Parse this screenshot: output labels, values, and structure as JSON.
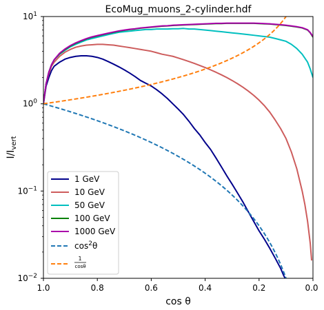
{
  "chart_data": {
    "type": "line",
    "title": "EcoMug_muons_2-cylinder.hdf",
    "xlabel": "cos θ",
    "ylabel": "I/I_vert",
    "xlim": [
      1.0,
      0.0
    ],
    "ylim": [
      0.01,
      10
    ],
    "yscale": "log",
    "x_ticks": [
      "1.0",
      "0.8",
      "0.6",
      "0.4",
      "0.2",
      "0.0"
    ],
    "y_ticks": [
      "10^-2",
      "10^-1",
      "10^0",
      "10^1"
    ],
    "legend_position": "lower-left",
    "grid": false,
    "series": [
      {
        "name": "1 GeV",
        "color": "#00008b",
        "style": "solid",
        "x": [
          1.0,
          0.99,
          0.98,
          0.97,
          0.96,
          0.94,
          0.92,
          0.9,
          0.88,
          0.86,
          0.84,
          0.82,
          0.8,
          0.78,
          0.76,
          0.74,
          0.72,
          0.7,
          0.68,
          0.66,
          0.64,
          0.62,
          0.6,
          0.58,
          0.56,
          0.54,
          0.52,
          0.5,
          0.48,
          0.46,
          0.44,
          0.42,
          0.4,
          0.38,
          0.36,
          0.34,
          0.32,
          0.3,
          0.28,
          0.26,
          0.24,
          0.22,
          0.2,
          0.18,
          0.16,
          0.14,
          0.12,
          0.11,
          0.1,
          0.095,
          0.09
        ],
        "y": [
          1.0,
          1.6,
          2.0,
          2.4,
          2.7,
          3.0,
          3.25,
          3.4,
          3.5,
          3.55,
          3.55,
          3.5,
          3.4,
          3.25,
          3.05,
          2.85,
          2.65,
          2.45,
          2.25,
          2.05,
          1.85,
          1.72,
          1.6,
          1.45,
          1.3,
          1.15,
          1.0,
          0.87,
          0.75,
          0.63,
          0.52,
          0.44,
          0.36,
          0.3,
          0.24,
          0.19,
          0.15,
          0.12,
          0.095,
          0.075,
          0.058,
          0.045,
          0.035,
          0.028,
          0.022,
          0.017,
          0.013,
          0.011,
          0.0095,
          0.0088,
          0.0082
        ]
      },
      {
        "name": "10 GeV",
        "color": "#cd5c5c",
        "style": "solid",
        "x": [
          1.0,
          0.99,
          0.98,
          0.97,
          0.96,
          0.94,
          0.92,
          0.9,
          0.88,
          0.86,
          0.84,
          0.82,
          0.8,
          0.78,
          0.76,
          0.74,
          0.72,
          0.7,
          0.68,
          0.66,
          0.64,
          0.62,
          0.6,
          0.58,
          0.56,
          0.54,
          0.52,
          0.5,
          0.48,
          0.46,
          0.44,
          0.42,
          0.4,
          0.38,
          0.36,
          0.34,
          0.32,
          0.3,
          0.28,
          0.26,
          0.24,
          0.22,
          0.2,
          0.18,
          0.16,
          0.14,
          0.12,
          0.1,
          0.08,
          0.06,
          0.04,
          0.03,
          0.02,
          0.01,
          0.005
        ],
        "y": [
          1.0,
          1.7,
          2.2,
          2.7,
          3.0,
          3.5,
          3.9,
          4.2,
          4.45,
          4.6,
          4.7,
          4.75,
          4.8,
          4.8,
          4.75,
          4.7,
          4.6,
          4.5,
          4.4,
          4.3,
          4.2,
          4.1,
          4.0,
          3.85,
          3.7,
          3.6,
          3.5,
          3.35,
          3.2,
          3.05,
          2.9,
          2.75,
          2.6,
          2.45,
          2.3,
          2.15,
          2.0,
          1.85,
          1.7,
          1.55,
          1.4,
          1.25,
          1.1,
          0.95,
          0.8,
          0.65,
          0.52,
          0.4,
          0.28,
          0.18,
          0.1,
          0.07,
          0.045,
          0.025,
          0.016
        ]
      },
      {
        "name": "50 GeV",
        "color": "#00bfbf",
        "style": "solid",
        "x": [
          1.0,
          0.99,
          0.98,
          0.97,
          0.96,
          0.94,
          0.92,
          0.9,
          0.88,
          0.86,
          0.84,
          0.82,
          0.8,
          0.78,
          0.76,
          0.74,
          0.72,
          0.7,
          0.68,
          0.66,
          0.64,
          0.62,
          0.6,
          0.58,
          0.56,
          0.54,
          0.52,
          0.5,
          0.48,
          0.46,
          0.44,
          0.42,
          0.4,
          0.38,
          0.36,
          0.34,
          0.32,
          0.3,
          0.28,
          0.26,
          0.24,
          0.22,
          0.2,
          0.18,
          0.16,
          0.14,
          0.12,
          0.1,
          0.08,
          0.06,
          0.04,
          0.02,
          0.01,
          0.0
        ],
        "y": [
          1.0,
          1.7,
          2.3,
          2.8,
          3.2,
          3.7,
          4.1,
          4.5,
          4.8,
          5.1,
          5.4,
          5.6,
          5.8,
          6.0,
          6.2,
          6.4,
          6.6,
          6.7,
          6.8,
          6.9,
          7.0,
          7.1,
          7.1,
          7.2,
          7.2,
          7.2,
          7.25,
          7.25,
          7.3,
          7.2,
          7.2,
          7.1,
          7.0,
          6.9,
          6.8,
          6.7,
          6.6,
          6.5,
          6.4,
          6.3,
          6.2,
          6.1,
          6.0,
          5.9,
          5.8,
          5.6,
          5.4,
          5.2,
          4.8,
          4.3,
          3.7,
          3.0,
          2.5,
          2.0
        ]
      },
      {
        "name": "100 GeV",
        "color": "#008000",
        "style": "solid",
        "x": [
          1.0,
          0.99,
          0.98,
          0.97,
          0.96,
          0.94,
          0.92,
          0.9,
          0.88,
          0.86,
          0.84,
          0.82,
          0.8,
          0.78,
          0.76,
          0.74,
          0.72,
          0.7,
          0.68,
          0.66,
          0.64,
          0.62,
          0.6,
          0.58,
          0.56,
          0.54,
          0.52,
          0.5,
          0.48,
          0.46,
          0.44,
          0.42,
          0.4,
          0.38,
          0.36,
          0.34,
          0.32,
          0.3,
          0.28,
          0.26,
          0.24,
          0.22,
          0.2,
          0.18,
          0.16,
          0.14,
          0.12,
          0.1,
          0.08,
          0.06,
          0.04,
          0.02,
          0.01,
          0.0
        ],
        "y": [
          1.0,
          1.7,
          2.3,
          2.8,
          3.2,
          3.75,
          4.2,
          4.6,
          4.95,
          5.25,
          5.55,
          5.8,
          6.0,
          6.2,
          6.4,
          6.6,
          6.8,
          6.95,
          7.1,
          7.2,
          7.35,
          7.45,
          7.55,
          7.65,
          7.75,
          7.8,
          7.9,
          7.95,
          8.0,
          8.05,
          8.1,
          8.15,
          8.2,
          8.25,
          8.3,
          8.3,
          8.35,
          8.35,
          8.35,
          8.35,
          8.35,
          8.35,
          8.3,
          8.25,
          8.2,
          8.1,
          8.0,
          7.9,
          7.75,
          7.6,
          7.4,
          7.0,
          6.5,
          5.8
        ]
      },
      {
        "name": "1000 GeV",
        "color": "#aa00aa",
        "style": "solid",
        "x": [
          1.0,
          0.99,
          0.98,
          0.97,
          0.96,
          0.94,
          0.92,
          0.9,
          0.88,
          0.86,
          0.84,
          0.82,
          0.8,
          0.78,
          0.76,
          0.74,
          0.72,
          0.7,
          0.68,
          0.66,
          0.64,
          0.62,
          0.6,
          0.58,
          0.56,
          0.54,
          0.52,
          0.5,
          0.48,
          0.46,
          0.44,
          0.42,
          0.4,
          0.38,
          0.36,
          0.34,
          0.32,
          0.3,
          0.28,
          0.26,
          0.24,
          0.22,
          0.2,
          0.18,
          0.16,
          0.14,
          0.12,
          0.1,
          0.08,
          0.06,
          0.04,
          0.02,
          0.01,
          0.0
        ],
        "y": [
          1.0,
          1.7,
          2.3,
          2.8,
          3.2,
          3.8,
          4.25,
          4.65,
          5.0,
          5.3,
          5.6,
          5.85,
          6.05,
          6.25,
          6.45,
          6.65,
          6.85,
          7.0,
          7.15,
          7.25,
          7.4,
          7.5,
          7.6,
          7.7,
          7.8,
          7.85,
          7.95,
          8.0,
          8.05,
          8.1,
          8.15,
          8.2,
          8.25,
          8.3,
          8.35,
          8.35,
          8.4,
          8.4,
          8.4,
          8.4,
          8.4,
          8.4,
          8.35,
          8.3,
          8.25,
          8.15,
          8.05,
          7.95,
          7.8,
          7.65,
          7.45,
          7.05,
          6.55,
          5.9
        ]
      },
      {
        "name": "cos²θ",
        "color": "#1f77b4",
        "style": "dashed",
        "function": "cos2",
        "x_range": [
          1.0,
          0.1
        ]
      },
      {
        "name": "1/cosθ",
        "color": "#ff7f0e",
        "style": "dashed",
        "function": "inv",
        "x_range": [
          1.0,
          0.1
        ]
      }
    ]
  }
}
